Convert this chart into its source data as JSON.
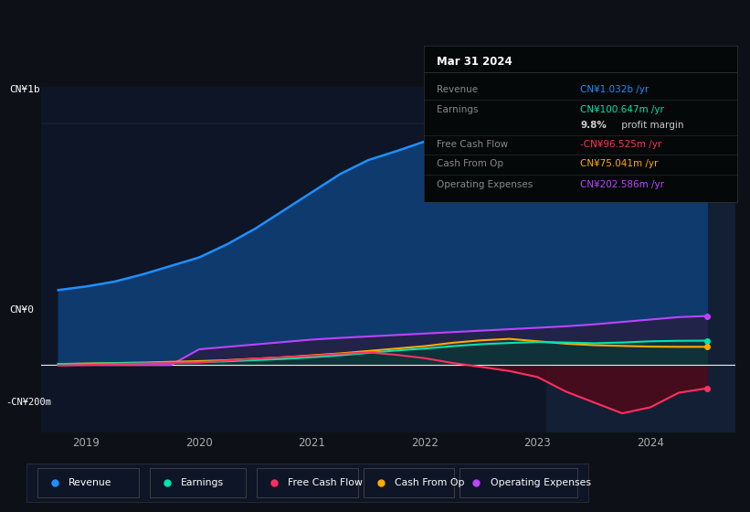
{
  "background_color": "#0d1117",
  "chart_bg": "#0d1526",
  "forecast_bg": "#111d30",
  "ylim": [
    -280000000,
    1150000000
  ],
  "xlim_start": 2018.6,
  "xlim_end": 2024.75,
  "xticks": [
    2019,
    2020,
    2021,
    2022,
    2023,
    2024
  ],
  "forecast_start": 2023.08,
  "zero_line_y": 0,
  "y_label_1b": 1000000000,
  "y_label_neg200m": -200000000,
  "info_box": {
    "date": "Mar 31 2024",
    "rows": [
      {
        "label": "Revenue",
        "value": "CN¥1.032b /yr",
        "color": "#1e90ff"
      },
      {
        "label": "Earnings",
        "value": "CN¥100.647m /yr",
        "color": "#00e5b0"
      },
      {
        "label": "",
        "value": "9.8% profit margin",
        "color": "#cccccc"
      },
      {
        "label": "Free Cash Flow",
        "value": "-CN¥96.525m /yr",
        "color": "#ff3060"
      },
      {
        "label": "Cash From Op",
        "value": "CN¥75.041m /yr",
        "color": "#ffaa00"
      },
      {
        "label": "Operating Expenses",
        "value": "CN¥202.586m /yr",
        "color": "#bb44ff"
      }
    ]
  },
  "legend_items": [
    {
      "label": "Revenue",
      "color": "#1e90ff"
    },
    {
      "label": "Earnings",
      "color": "#00e5b0"
    },
    {
      "label": "Free Cash Flow",
      "color": "#ff3060"
    },
    {
      "label": "Cash From Op",
      "color": "#ffaa00"
    },
    {
      "label": "Operating Expenses",
      "color": "#bb44ff"
    }
  ],
  "series": {
    "x": [
      2018.75,
      2019.0,
      2019.25,
      2019.5,
      2019.75,
      2020.0,
      2020.25,
      2020.5,
      2020.75,
      2021.0,
      2021.25,
      2021.5,
      2021.75,
      2022.0,
      2022.25,
      2022.5,
      2022.75,
      2023.0,
      2023.25,
      2023.5,
      2023.75,
      2024.0,
      2024.25,
      2024.5
    ],
    "revenue": [
      310000000,
      325000000,
      345000000,
      375000000,
      410000000,
      445000000,
      500000000,
      565000000,
      640000000,
      715000000,
      790000000,
      848000000,
      885000000,
      925000000,
      945000000,
      955000000,
      950000000,
      935000000,
      875000000,
      890000000,
      930000000,
      975000000,
      1020000000,
      1032000000
    ],
    "earnings": [
      4000000,
      5000000,
      7000000,
      8000000,
      10000000,
      12000000,
      15000000,
      20000000,
      25000000,
      32000000,
      40000000,
      50000000,
      60000000,
      68000000,
      78000000,
      86000000,
      91000000,
      95000000,
      93000000,
      90000000,
      93000000,
      98000000,
      100000000,
      100647000
    ],
    "free_cash_flow": [
      -2000000,
      0,
      3000000,
      6000000,
      8000000,
      10000000,
      18000000,
      26000000,
      32000000,
      38000000,
      46000000,
      52000000,
      42000000,
      28000000,
      8000000,
      -8000000,
      -25000000,
      -50000000,
      -110000000,
      -155000000,
      -200000000,
      -175000000,
      -115000000,
      -96525000
    ],
    "cash_from_op": [
      4000000,
      6000000,
      8000000,
      10000000,
      13000000,
      16000000,
      20000000,
      26000000,
      32000000,
      40000000,
      48000000,
      58000000,
      68000000,
      78000000,
      92000000,
      102000000,
      108000000,
      98000000,
      88000000,
      82000000,
      79000000,
      76000000,
      75041000,
      75041000
    ],
    "op_expenses": [
      0,
      0,
      0,
      0,
      0,
      65000000,
      75000000,
      85000000,
      95000000,
      105000000,
      112000000,
      118000000,
      124000000,
      130000000,
      136000000,
      142000000,
      148000000,
      154000000,
      160000000,
      168000000,
      178000000,
      188000000,
      198000000,
      202586000
    ]
  }
}
